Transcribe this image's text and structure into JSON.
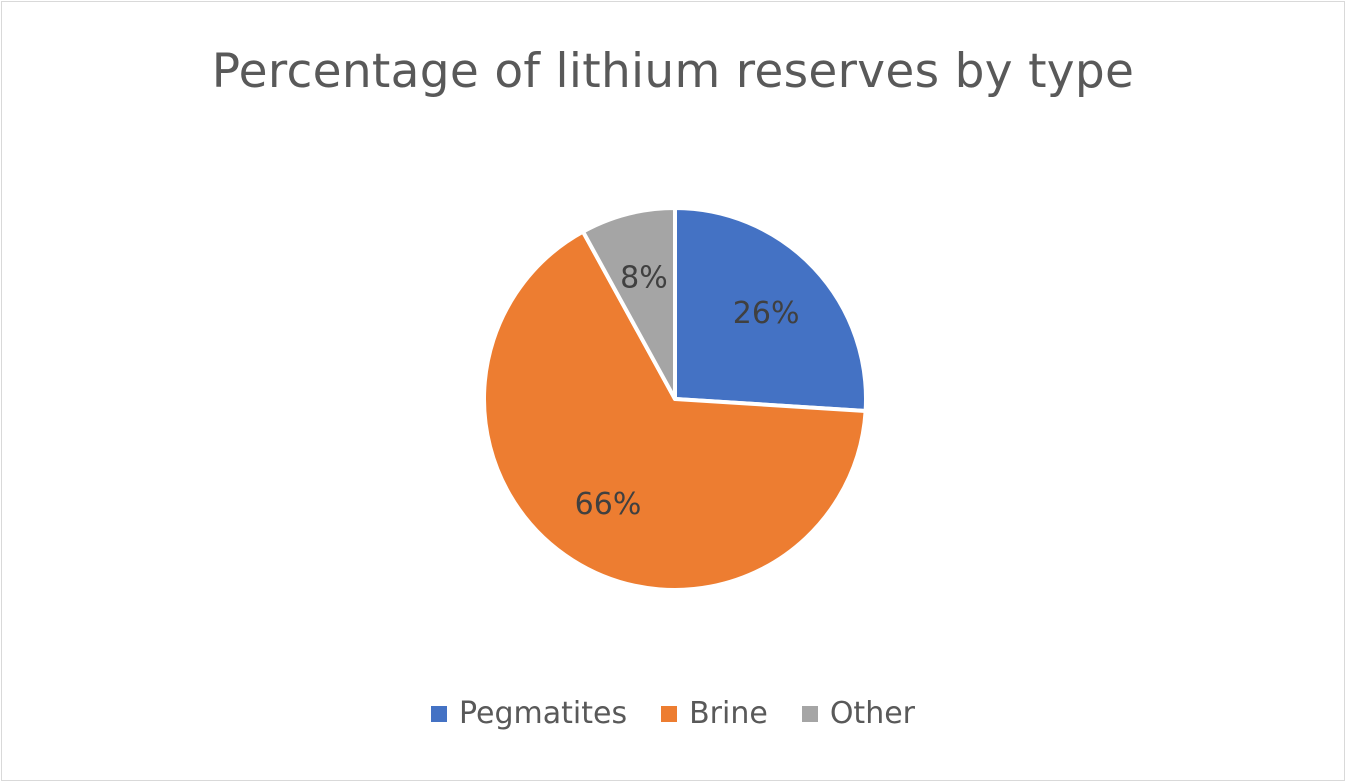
{
  "chart_data": {
    "type": "pie",
    "title": "Percentage of lithium reserves by type",
    "slices": [
      {
        "name": "Pegmatites",
        "value": 26,
        "label": "26%",
        "color": "#4472C4"
      },
      {
        "name": "Brine",
        "value": 66,
        "label": "66%",
        "color": "#ED7D31"
      },
      {
        "name": "Other",
        "value": 8,
        "label": "8%",
        "color": "#A5A5A5"
      }
    ],
    "start_angle_deg": 0,
    "direction": "clockwise",
    "legend_position": "bottom",
    "data_labels": "percent"
  }
}
